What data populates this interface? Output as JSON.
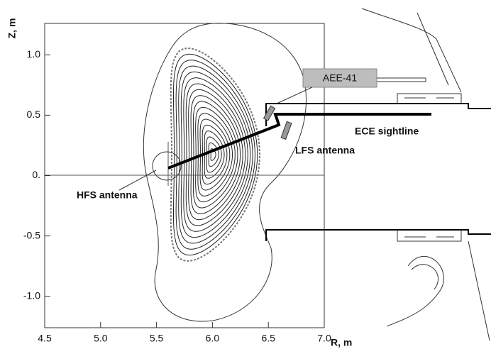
{
  "chart_data": {
    "type": "crosssection",
    "x_label": "R, m",
    "y_label": "Z, m",
    "xlim": [
      4.5,
      7.0
    ],
    "ylim": [
      -1.26,
      1.26
    ],
    "xticks": [
      4.5,
      {
        "value": 5,
        "label": "5.0"
      },
      5.5,
      {
        "value": 6,
        "label": "6.0"
      },
      6.5,
      {
        "value": 7,
        "label": "7.0"
      }
    ],
    "yticks": [
      {
        "value": 1,
        "label": "1.0"
      },
      0.5,
      {
        "value": 0,
        "label": "0."
      },
      -0.5,
      {
        "value": -1,
        "label": "-1.0"
      }
    ],
    "annotations": [
      "AEE-41",
      "ECE sightline",
      "LFS antenna",
      "HFS antenna"
    ]
  }
}
